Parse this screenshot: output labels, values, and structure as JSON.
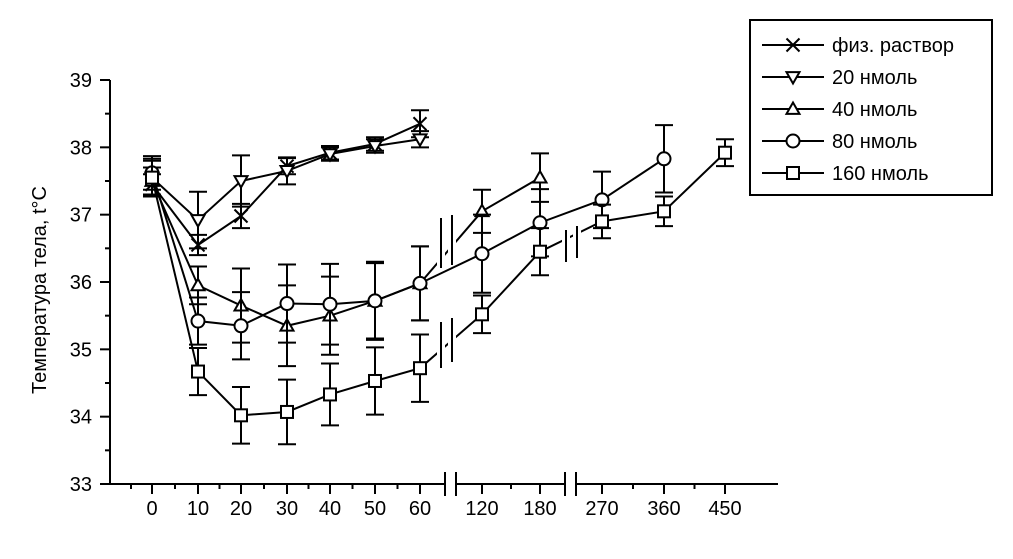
{
  "chart_data": {
    "type": "line",
    "title": "",
    "ylabel": "Температура тела, t°C",
    "xlabel": "",
    "ylim": [
      33,
      39
    ],
    "y_ticks": [
      "33",
      "34",
      "35",
      "36",
      "37",
      "38",
      "39"
    ],
    "x_categories": [
      "0",
      "10",
      "20",
      "30",
      "40",
      "50",
      "60",
      "120",
      "180",
      "270",
      "360",
      "450"
    ],
    "x_axis_breaks": [
      "60–120",
      "180–270"
    ],
    "legend_position": "top-right",
    "grid": false,
    "series": [
      {
        "name": "физ. раствор",
        "marker": "x",
        "points": [
          {
            "x": "0",
            "y": 37.45,
            "err": 0.15
          },
          {
            "x": "10",
            "y": 36.55,
            "err": 0.15
          },
          {
            "x": "20",
            "y": 36.98,
            "err": 0.18
          },
          {
            "x": "30",
            "y": 37.72,
            "err": 0.12
          },
          {
            "x": "40",
            "y": 37.92,
            "err": 0.1
          },
          {
            "x": "50",
            "y": 38.05,
            "err": 0.1
          },
          {
            "x": "60",
            "y": 38.35,
            "err": 0.2
          }
        ]
      },
      {
        "name": "20 нмоль",
        "marker": "triangle-down",
        "points": [
          {
            "x": "0",
            "y": 37.55,
            "err": 0.28
          },
          {
            "x": "10",
            "y": 36.92,
            "err": 0.42
          },
          {
            "x": "20",
            "y": 37.5,
            "err": 0.38
          },
          {
            "x": "30",
            "y": 37.65,
            "err": 0.2
          },
          {
            "x": "40",
            "y": 37.9,
            "err": 0.1
          },
          {
            "x": "50",
            "y": 38.02,
            "err": 0.1
          },
          {
            "x": "60",
            "y": 38.12,
            "err": 0.12
          }
        ]
      },
      {
        "name": "40 нмоль",
        "marker": "triangle-up",
        "points": [
          {
            "x": "0",
            "y": 37.5,
            "err": 0.2
          },
          {
            "x": "10",
            "y": 35.95,
            "err": 0.28
          },
          {
            "x": "20",
            "y": 35.65,
            "err": 0.55
          },
          {
            "x": "30",
            "y": 35.35,
            "err": 0.6
          },
          {
            "x": "40",
            "y": 35.5,
            "err": 0.58
          },
          {
            "x": "50",
            "y": 35.72,
            "err": 0.58
          },
          {
            "x": "60",
            "y": 35.98,
            "err": 0.55
          },
          {
            "x": "120",
            "y": 37.05,
            "err": 0.32
          },
          {
            "x": "180",
            "y": 37.55,
            "err": 0.36
          }
        ]
      },
      {
        "name": "80 нмоль",
        "marker": "circle",
        "points": [
          {
            "x": "0",
            "y": 37.62,
            "err": 0.25
          },
          {
            "x": "10",
            "y": 35.42,
            "err": 0.35
          },
          {
            "x": "20",
            "y": 35.35,
            "err": 0.5
          },
          {
            "x": "30",
            "y": 35.68,
            "err": 0.58
          },
          {
            "x": "40",
            "y": 35.67,
            "err": 0.6
          },
          {
            "x": "50",
            "y": 35.72,
            "err": 0.56
          },
          {
            "x": "60",
            "y": 35.98,
            "err": 0.55
          },
          {
            "x": "120",
            "y": 36.42,
            "err": 0.58
          },
          {
            "x": "180",
            "y": 36.88,
            "err": 0.5
          },
          {
            "x": "270",
            "y": 37.22,
            "err": 0.42
          },
          {
            "x": "360",
            "y": 37.83,
            "err": 0.5
          }
        ]
      },
      {
        "name": "160 нмоль",
        "marker": "square",
        "points": [
          {
            "x": "0",
            "y": 37.55,
            "err": 0.25
          },
          {
            "x": "10",
            "y": 34.67,
            "err": 0.35
          },
          {
            "x": "20",
            "y": 34.02,
            "err": 0.42
          },
          {
            "x": "30",
            "y": 34.07,
            "err": 0.48
          },
          {
            "x": "40",
            "y": 34.33,
            "err": 0.46
          },
          {
            "x": "50",
            "y": 34.53,
            "err": 0.5
          },
          {
            "x": "60",
            "y": 34.72,
            "err": 0.5
          },
          {
            "x": "120",
            "y": 35.52,
            "err": 0.28
          },
          {
            "x": "180",
            "y": 36.45,
            "err": 0.35
          },
          {
            "x": "270",
            "y": 36.9,
            "err": 0.25
          },
          {
            "x": "360",
            "y": 37.05,
            "err": 0.22
          },
          {
            "x": "450",
            "y": 37.92,
            "err": 0.2
          }
        ]
      }
    ]
  }
}
